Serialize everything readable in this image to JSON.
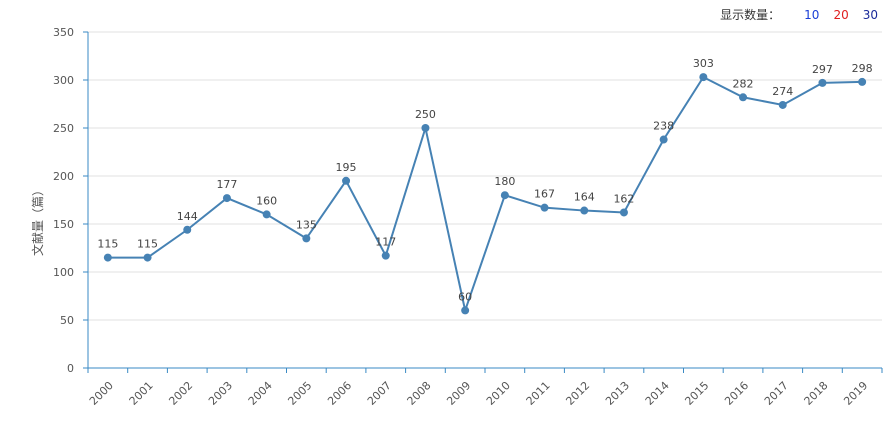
{
  "toolbar": {
    "label": "显示数量：",
    "options": [
      {
        "label": "10",
        "color": "#1a3fd6"
      },
      {
        "label": "20",
        "color": "#e01e1e"
      },
      {
        "label": "30",
        "color": "#1a2a9a"
      }
    ]
  },
  "colors": {
    "line": "#4682b4",
    "axis": "#3a8ac4",
    "grid": "#e0e0e0"
  },
  "chart_data": {
    "type": "line",
    "title": "",
    "xlabel": "",
    "ylabel": "文献量（篇）",
    "ylim": [
      0,
      350
    ],
    "yticks": [
      0,
      50,
      100,
      150,
      200,
      250,
      300,
      350
    ],
    "grid": true,
    "categories": [
      "2000",
      "2001",
      "2002",
      "2003",
      "2004",
      "2005",
      "2006",
      "2007",
      "2008",
      "2009",
      "2010",
      "2011",
      "2012",
      "2013",
      "2014",
      "2015",
      "2016",
      "2017",
      "2018",
      "2019"
    ],
    "series": [
      {
        "values": [
          115,
          115,
          144,
          177,
          160,
          135,
          195,
          117,
          250,
          60,
          180,
          167,
          164,
          162,
          238,
          303,
          282,
          274,
          297,
          298
        ]
      }
    ]
  }
}
